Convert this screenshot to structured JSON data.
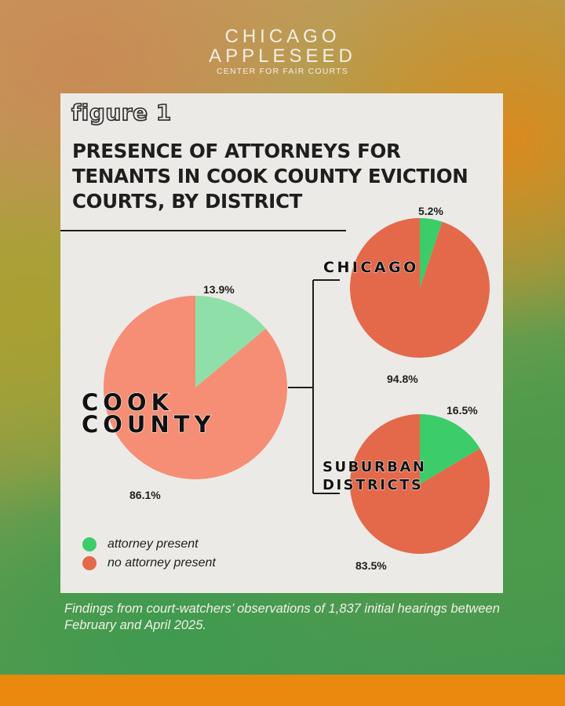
{
  "brand": {
    "line1": "CHICAGO",
    "line2": "APPLESEED",
    "line3": "CENTER FOR FAIR COURTS"
  },
  "figure_label": "figure 1",
  "title": "PRESENCE OF ATTORNEYS FOR TENANTS IN COOK COUNTY EVICTION COURTS, BY DISTRICT",
  "colors": {
    "attorney_present_light": "#8fe0a8",
    "no_attorney_light": "#f58e75",
    "attorney_present": "#3ccc6a",
    "no_attorney": "#e3694a"
  },
  "legend": [
    {
      "label": "attorney present",
      "color": "#3ccc6a"
    },
    {
      "label": "no attorney present",
      "color": "#e3694a"
    }
  ],
  "caption": "Findings from court-watchers’ observations of 1,837 initial hearings between February and April 2025.",
  "chart_data": [
    {
      "type": "pie",
      "title": "COOK COUNTY",
      "slices": [
        {
          "label": "attorney present",
          "value": 13.9,
          "display": "13.9%"
        },
        {
          "label": "no attorney present",
          "value": 86.1,
          "display": "86.1%"
        }
      ]
    },
    {
      "type": "pie",
      "title": "CHICAGO",
      "slices": [
        {
          "label": "attorney present",
          "value": 5.2,
          "display": "5.2%"
        },
        {
          "label": "no attorney present",
          "value": 94.8,
          "display": "94.8%"
        }
      ]
    },
    {
      "type": "pie",
      "title": "SUBURBAN DISTRICTS",
      "slices": [
        {
          "label": "attorney present",
          "value": 16.5,
          "display": "16.5%"
        },
        {
          "label": "no attorney present",
          "value": 83.5,
          "display": "83.5%"
        }
      ]
    }
  ]
}
